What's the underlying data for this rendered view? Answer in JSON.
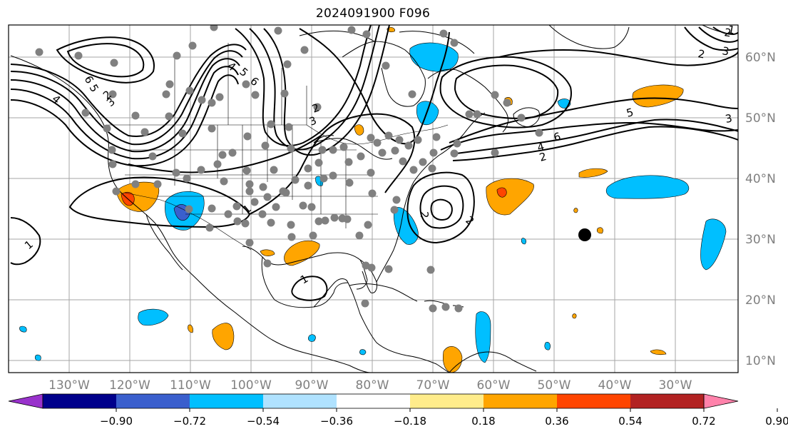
{
  "title": "2024091900 F096",
  "latitudes": [
    {
      "label": "60°N",
      "lat": 60
    },
    {
      "label": "50°N",
      "lat": 50
    },
    {
      "label": "40°N",
      "lat": 40
    },
    {
      "label": "30°N",
      "lat": 30
    },
    {
      "label": "20°N",
      "lat": 20
    },
    {
      "label": "10°N",
      "lat": 10
    }
  ],
  "longitudes": [
    {
      "label": "130°W",
      "lon": -130
    },
    {
      "label": "120°W",
      "lon": -120
    },
    {
      "label": "110°W",
      "lon": -110
    },
    {
      "label": "100°W",
      "lon": -100
    },
    {
      "label": "90°W",
      "lon": -90
    },
    {
      "label": "80°W",
      "lon": -80
    },
    {
      "label": "70°W",
      "lon": -70
    },
    {
      "label": "60°W",
      "lon": -60
    },
    {
      "label": "50°W",
      "lon": -50
    },
    {
      "label": "40°W",
      "lon": -40
    },
    {
      "label": "30°W",
      "lon": -30
    }
  ],
  "colorbar": {
    "colors": [
      "#9932cc",
      "#00008b",
      "#3a5fcd",
      "#00bfff",
      "#b0e2ff",
      "#ffffff",
      "#ffec8b",
      "#ffa500",
      "#ff4500",
      "#b22222",
      "#ff82ab"
    ],
    "ticks": [
      "−0.90",
      "−0.72",
      "−0.54",
      "−0.36",
      "−0.18",
      "0.18",
      "0.36",
      "0.54",
      "0.72",
      "0.90"
    ]
  },
  "contour_labels": [
    "6",
    "5",
    "4",
    "3",
    "2",
    "1",
    "6",
    "5",
    "4",
    "3",
    "2",
    "1",
    "2",
    "2",
    "1",
    "6",
    "4",
    "2",
    "2",
    "3",
    "3",
    "5",
    "2",
    "1"
  ],
  "station_marker": "gray dots"
}
